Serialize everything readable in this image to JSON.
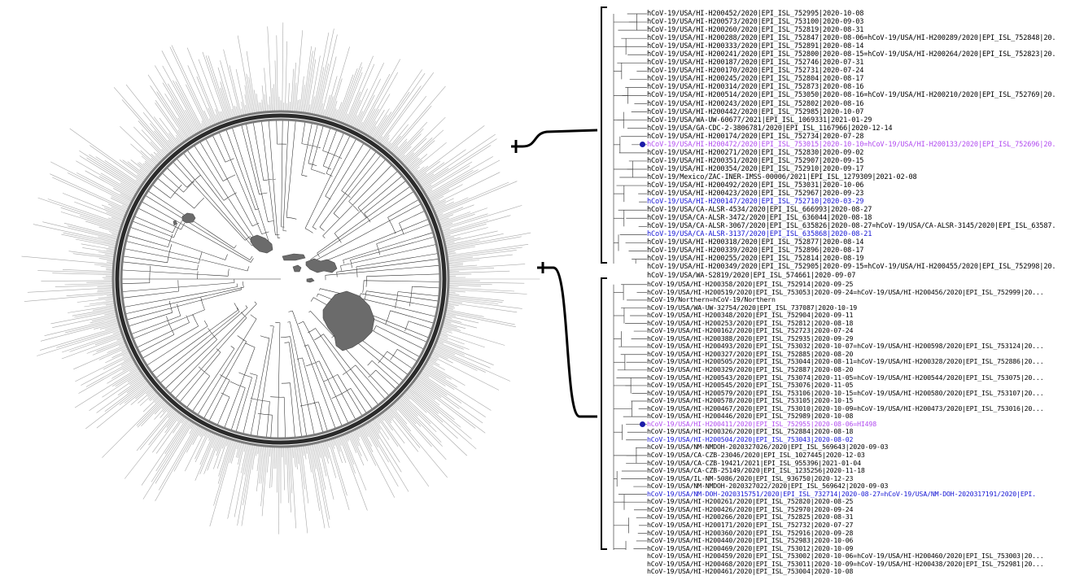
{
  "colors": {
    "branch_outer": "#a8a8a8",
    "branch_inner": "#2b2b2b",
    "island_fill": "#6b6b6b",
    "highlight_purple": "#b24cf0",
    "highlight_blue": "#1515d4",
    "marker": "#1a1aa8"
  },
  "icons": {
    "island_map": "hawaiian-islands-silhouette",
    "tip_marker": "filled-circle"
  },
  "clade_top": {
    "tips": [
      {
        "label": "hCoV-19/USA/HI-H200452/2020|EPI_ISL_752995|2020-10-08",
        "highlight": "none"
      },
      {
        "label": "hCoV-19/USA/HI-H200573/2020|EPI_ISL_753100|2020-09-03",
        "highlight": "none"
      },
      {
        "label": "hCoV-19/USA/HI-H200260/2020|EPI_ISL_752819|2020-08-31",
        "highlight": "none"
      },
      {
        "label": "hCoV-19/USA/HI-H200288/2020|EPI_ISL_752847|2020-08-06=hCoV-19/USA/HI-H200289/2020|EPI_ISL_752848|20.",
        "highlight": "none"
      },
      {
        "label": "hCoV-19/USA/HI-H200333/2020|EPI_ISL_752891|2020-08-14",
        "highlight": "none"
      },
      {
        "label": "hCoV-19/USA/HI-H200241/2020|EPI_ISL_752800|2020-08-15=hCoV-19/USA/HI-H200264/2020|EPI_ISL_752823|20.",
        "highlight": "none"
      },
      {
        "label": "hCoV-19/USA/HI-H200187/2020|EPI_ISL_752746|2020-07-31",
        "highlight": "none"
      },
      {
        "label": "hCoV-19/USA/HI-H200170/2020|EPI_ISL_752731|2020-07-24",
        "highlight": "none"
      },
      {
        "label": "hCoV-19/USA/HI-H200245/2020|EPI_ISL_752804|2020-08-17",
        "highlight": "none"
      },
      {
        "label": "hCoV-19/USA/HI-H200314/2020|EPI_ISL_752873|2020-08-16",
        "highlight": "none"
      },
      {
        "label": "hCoV-19/USA/HI-H200514/2020|EPI_ISL_753050|2020-08-16=hCoV-19/USA/HI-H200210/2020|EPI_ISL_752769|20.",
        "highlight": "none"
      },
      {
        "label": "hCoV-19/USA/HI-H200243/2020|EPI_ISL_752802|2020-08-16",
        "highlight": "none"
      },
      {
        "label": "hCoV-19/USA/HI-H200442/2020|EPI_ISL_752985|2020-10-07",
        "highlight": "none"
      },
      {
        "label": "hCoV-19/USA/WA-UW-60677/2021|EPI_ISL_1069331|2021-01-29",
        "highlight": "none"
      },
      {
        "label": "hCoV-19/USA/GA-CDC-2-3806781/2020|EPI_ISL_1167966|2020-12-14",
        "highlight": "none"
      },
      {
        "label": "hCoV-19/USA/HI-H200174/2020|EPI_ISL_752734|2020-07-28",
        "highlight": "none"
      },
      {
        "label": "hCoV-19/USA/HI-H200472/2020|EPI_ISL_753015|2020-10-10=hCoV-19/USA/HI-H200133/2020|EPI_ISL_752696|20.",
        "highlight": "purple",
        "marker": true
      },
      {
        "label": "hCoV-19/USA/HI-H200271/2020|EPI_ISL_752830|2020-09-02",
        "highlight": "none"
      },
      {
        "label": "hCoV-19/USA/HI-H200351/2020|EPI_ISL_752907|2020-09-15",
        "highlight": "none"
      },
      {
        "label": "hCoV-19/USA/HI-H200354/2020|EPI_ISL_752910|2020-09-17",
        "highlight": "none"
      },
      {
        "label": "hCoV-19/Mexico/ZAC-INER-IMSS-00006/2021|EPI_ISL_1279309|2021-02-08",
        "highlight": "none"
      },
      {
        "label": "hCoV-19/USA/HI-H200492/2020|EPI_ISL_753031|2020-10-06",
        "highlight": "none"
      },
      {
        "label": "hCoV-19/USA/HI-H200423/2020|EPI_ISL_752967|2020-09-23",
        "highlight": "none"
      },
      {
        "label": "hCoV-19/USA/HI-H200147/2020|EPI_ISL_752710|2020-03-29",
        "highlight": "blue"
      },
      {
        "label": "hCoV-19/USA/CA-ALSR-4534/2020|EPI_ISL_666993|2020-08-27",
        "highlight": "none"
      },
      {
        "label": "hCoV-19/USA/CA-ALSR-3472/2020|EPI_ISL_636044|2020-08-18",
        "highlight": "none"
      },
      {
        "label": "hCoV-19/USA/CA-ALSR-3067/2020|EPI_ISL_635826|2020-08-27=hCoV-19/USA/CA-ALSR-3145/2020|EPI_ISL_63587.",
        "highlight": "none"
      },
      {
        "label": "hCoV-19/USA/CA-ALSR-3137/2020|EPI_ISL_635868|2020-08-21",
        "highlight": "blue"
      },
      {
        "label": "hCoV-19/USA/HI-H200318/2020|EPI_ISL_752877|2020-08-14",
        "highlight": "none"
      },
      {
        "label": "hCoV-19/USA/HI-H200339/2020|EPI_ISL_752896|2020-08-17",
        "highlight": "none"
      },
      {
        "label": "hCoV-19/USA/HI-H200255/2020|EPI_ISL_752814|2020-08-19",
        "highlight": "none"
      },
      {
        "label": "hCoV-19/USA/HI-H200349/2020|EPI_ISL_752905|2020-09-15=hCoV-19/USA/HI-H200455/2020|EPI_ISL_752998|20.",
        "highlight": "none"
      },
      {
        "label": "hCoV-19/USA/WA-S2819/2020|EPI_ISL_574661|2020-09-07",
        "highlight": "none"
      }
    ]
  },
  "clade_bottom": {
    "tips": [
      {
        "label": "hCoV-19/USA/HI-H200358/2020|EPI_ISL_752914|2020-09-25",
        "highlight": "none"
      },
      {
        "label": "hCoV-19/USA/HI-H200519/2020|EPI_ISL_753053|2020-09-24=hCoV-19/USA/HI-H200456/2020|EPI_ISL_752999|20...",
        "highlight": "none"
      },
      {
        "label": "hCoV-19/Northern=hCoV-19/Northern",
        "highlight": "none"
      },
      {
        "label": "hCoV-19/USA/WA-UW-32754/2020|EPI_ISL_737087|2020-10-19",
        "highlight": "none"
      },
      {
        "label": "hCoV-19/USA/HI-H200348/2020|EPI_ISL_752904|2020-09-11",
        "highlight": "none"
      },
      {
        "label": "hCoV-19/USA/HI-H200253/2020|EPI_ISL_752812|2020-08-18",
        "highlight": "none"
      },
      {
        "label": "hCoV-19/USA/HI-H200162/2020|EPI_ISL_752723|2020-07-24",
        "highlight": "none"
      },
      {
        "label": "hCoV-19/USA/HI-H200388/2020|EPI_ISL_752935|2020-09-29",
        "highlight": "none"
      },
      {
        "label": "hCoV-19/USA/HI-H200493/2020|EPI_ISL_753032|2020-10-07=hCoV-19/USA/HI-H200598/2020|EPI_ISL_753124|20...",
        "highlight": "none"
      },
      {
        "label": "hCoV-19/USA/HI-H200327/2020|EPI_ISL_752885|2020-08-20",
        "highlight": "none"
      },
      {
        "label": "hCoV-19/USA/HI-H200505/2020|EPI_ISL_753044|2020-08-11=hCoV-19/USA/HI-H200328/2020|EPI_ISL_752886|20...",
        "highlight": "none"
      },
      {
        "label": "hCoV-19/USA/HI-H200329/2020|EPI_ISL_752887|2020-08-20",
        "highlight": "none"
      },
      {
        "label": "hCoV-19/USA/HI-H200543/2020|EPI_ISL_753074|2020-11-05=hCoV-19/USA/HI-H200544/2020|EPI_ISL_753075|20...",
        "highlight": "none"
      },
      {
        "label": "hCoV-19/USA/HI-H200545/2020|EPI_ISL_753076|2020-11-05",
        "highlight": "none"
      },
      {
        "label": "hCoV-19/USA/HI-H200579/2020|EPI_ISL_753106|2020-10-15=hCoV-19/USA/HI-H200580/2020|EPI_ISL_753107|20...",
        "highlight": "none"
      },
      {
        "label": "hCoV-19/USA/HI-H200578/2020|EPI_ISL_753105|2020-10-15",
        "highlight": "none"
      },
      {
        "label": "hCoV-19/USA/HI-H200467/2020|EPI_ISL_753010|2020-10-09=hCoV-19/USA/HI-H200473/2020|EPI_ISL_753016|20...",
        "highlight": "none"
      },
      {
        "label": "hCoV-19/USA/HI-H200446/2020|EPI_ISL_752989|2020-10-08",
        "highlight": "none"
      },
      {
        "label": "hCoV-19/USA/HI-H200411/2020|EPI_ISL_752955|2020-08-06=HI498",
        "highlight": "purple",
        "marker": true
      },
      {
        "label": "hCoV-19/USA/HI-H200326/2020|EPI_ISL_752884|2020-08-18",
        "highlight": "none"
      },
      {
        "label": "hCoV-19/USA/HI-H200504/2020|EPI_ISL_753043|2020-08-02",
        "highlight": "blue"
      },
      {
        "label": "hCoV-19/USA/NM-NMDOH-2020327026/2020|EPI_ISL_569643|2020-09-03",
        "highlight": "none"
      },
      {
        "label": "hCoV-19/USA/CA-CZB-23046/2020|EPI_ISL_1027445|2020-12-03",
        "highlight": "none"
      },
      {
        "label": "hCoV-19/USA/CA-CZB-19421/2021|EPI_ISL_955396|2021-01-04",
        "highlight": "none"
      },
      {
        "label": "hCoV-19/USA/CA-CZB-25149/2020|EPI_ISL_1235256|2020-11-18",
        "highlight": "none"
      },
      {
        "label": "hCoV-19/USA/IL-NM-5086/2020|EPI_ISL_936750|2020-12-23",
        "highlight": "none"
      },
      {
        "label": "hCoV-19/USA/NM-NMDOH-2020327022/2020|EPI_ISL_569642|2020-09-03",
        "highlight": "none"
      },
      {
        "label": "hCoV-19/USA/NM-DOH-2020315751/2020|EPI_ISL_732714|2020-08-27=hCoV-19/USA/NM-DOH-2020317191/2020|EPI.",
        "highlight": "blue"
      },
      {
        "label": "hCoV-19/USA/HI-H200261/2020|EPI_ISL_752820|2020-08-25",
        "highlight": "none"
      },
      {
        "label": "hCoV-19/USA/HI-H200426/2020|EPI_ISL_752970|2020-09-24",
        "highlight": "none"
      },
      {
        "label": "hCoV-19/USA/HI-H200266/2020|EPI_ISL_752825|2020-08-31",
        "highlight": "none"
      },
      {
        "label": "hCoV-19/USA/HI-H200171/2020|EPI_ISL_752732|2020-07-27",
        "highlight": "none"
      },
      {
        "label": "hCoV-19/USA/HI-H200360/2020|EPI_ISL_752916|2020-09-28",
        "highlight": "none"
      },
      {
        "label": "hCoV-19/USA/HI-H200440/2020|EPI_ISL_752983|2020-10-06",
        "highlight": "none"
      },
      {
        "label": "hCoV-19/USA/HI-H200469/2020|EPI_ISL_753012|2020-10-09",
        "highlight": "none"
      },
      {
        "label": "hCoV-19/USA/HI-H200459/2020|EPI_ISL_753002|2020-10-06=hCoV-19/USA/HI-H200460/2020|EPI_ISL_753003|20...",
        "highlight": "none"
      },
      {
        "label": "hCoV-19/USA/HI-H200468/2020|EPI_ISL_753011|2020-10-09=hCoV-19/USA/HI-H200438/2020|EPI_ISL_752981|20...",
        "highlight": "none"
      },
      {
        "label": "hCoV-19/USA/HI-H200461/2020|EPI_ISL_753004|2020-10-08",
        "highlight": "none"
      }
    ]
  }
}
